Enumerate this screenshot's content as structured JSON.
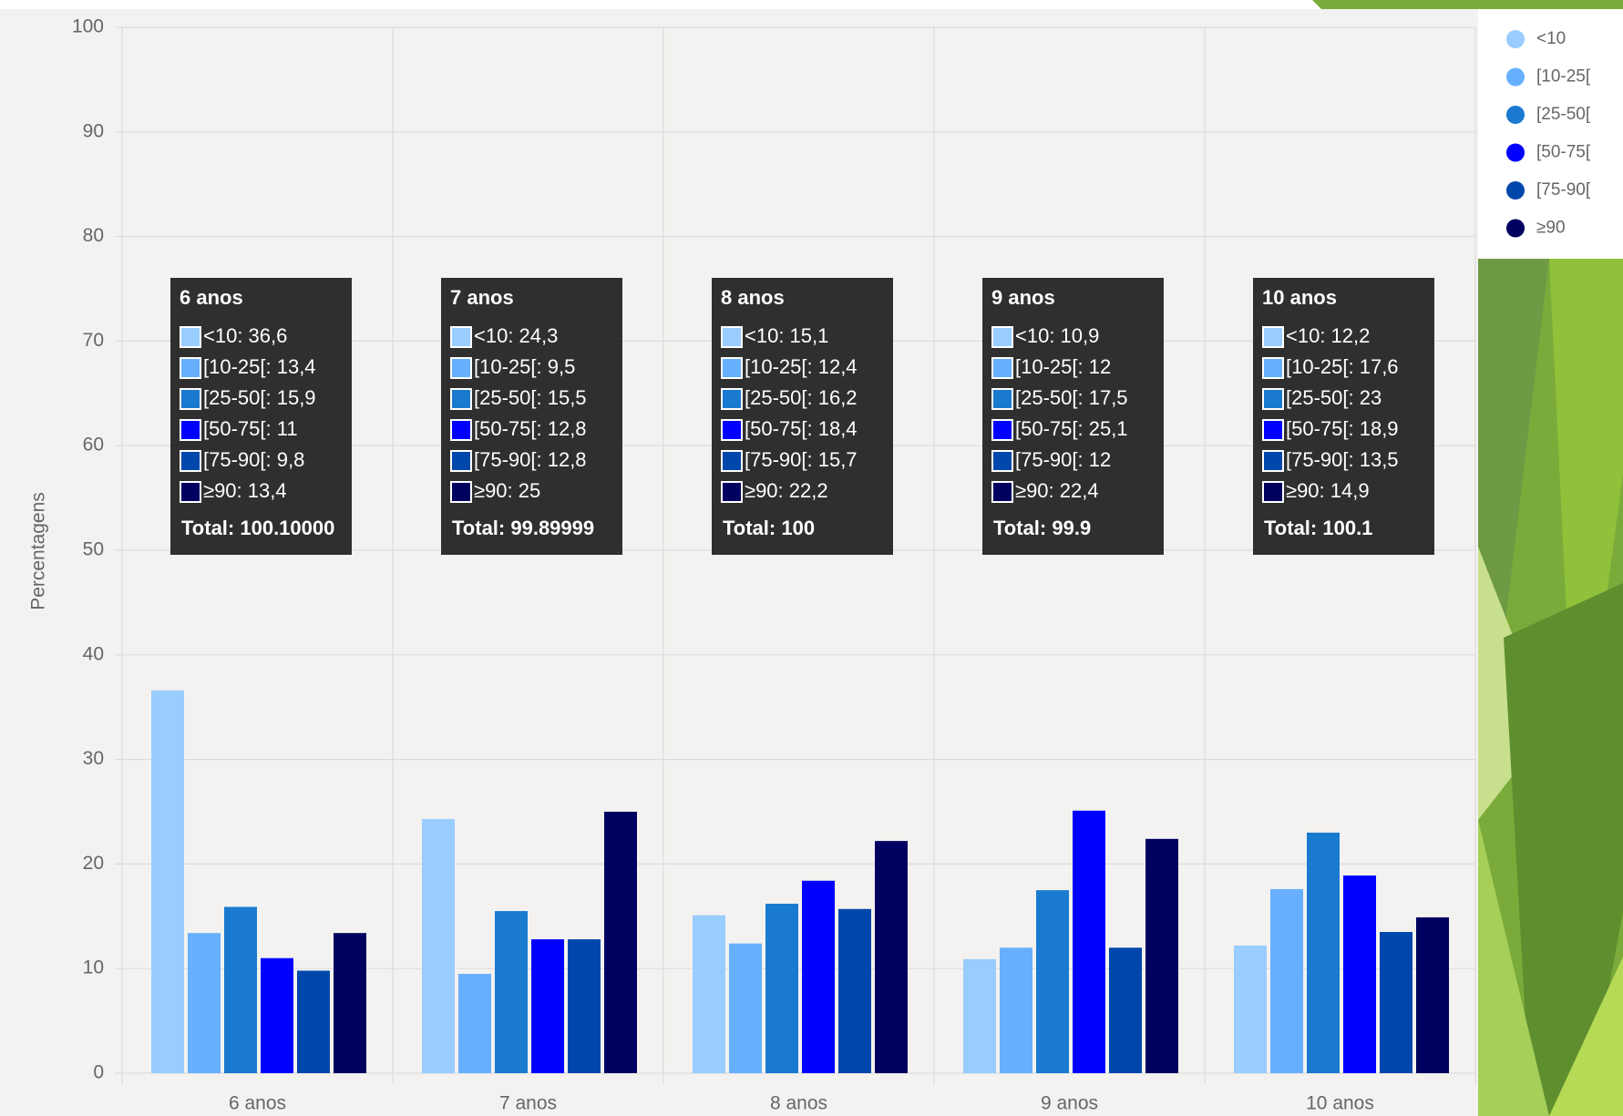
{
  "chart_data": {
    "type": "bar",
    "y_label": "Percentagens",
    "categories": [
      "6 anos",
      "7 anos",
      "8 anos",
      "9 anos",
      "10 anos"
    ],
    "series": [
      {
        "name": "<10",
        "color": "#99ccff",
        "values": [
          36.6,
          24.3,
          15.1,
          10.9,
          12.2
        ]
      },
      {
        "name": "[10-25[",
        "color": "#66b0ff",
        "values": [
          13.4,
          9.5,
          12.4,
          12,
          17.6
        ]
      },
      {
        "name": "[25-50[",
        "color": "#1a7ad0",
        "values": [
          15.9,
          15.5,
          16.2,
          17.5,
          23
        ]
      },
      {
        "name": "[50-75[",
        "color": "#0000ff",
        "values": [
          11,
          12.8,
          18.4,
          25.1,
          18.9
        ]
      },
      {
        "name": "[75-90[",
        "color": "#0047ab",
        "values": [
          9.8,
          12.8,
          15.7,
          12,
          13.5
        ]
      },
      {
        "name": "≥90",
        "color": "#000060",
        "values": [
          13.4,
          25,
          22.2,
          22.4,
          14.9
        ]
      }
    ],
    "ylim": [
      0,
      100
    ],
    "yticks": [
      0,
      10,
      20,
      30,
      40,
      50,
      60,
      70,
      80,
      90,
      100
    ],
    "grid": true,
    "legend": "right",
    "tooltips": [
      {
        "title": "6 anos",
        "lines": [
          "<10: 36,6",
          "[10-25[: 13,4",
          "[25-50[: 15,9",
          "[50-75[: 11",
          "[75-90[: 9,8",
          "≥90: 13,4"
        ],
        "total": "Total: 100.10000"
      },
      {
        "title": "7 anos",
        "lines": [
          "<10: 24,3",
          "[10-25[: 9,5",
          "[25-50[: 15,5",
          "[50-75[: 12,8",
          "[75-90[: 12,8",
          "≥90: 25"
        ],
        "total": "Total: 99.89999"
      },
      {
        "title": "8 anos",
        "lines": [
          "<10: 15,1",
          "[10-25[: 12,4",
          "[25-50[: 16,2",
          "[50-75[: 18,4",
          "[75-90[: 15,7",
          "≥90: 22,2"
        ],
        "total": "Total: 100"
      },
      {
        "title": "9 anos",
        "lines": [
          "<10: 10,9",
          "[10-25[: 12",
          "[25-50[: 17,5",
          "[50-75[: 25,1",
          "[75-90[: 12",
          "≥90: 22,4"
        ],
        "total": "Total: 99.9"
      },
      {
        "title": "10 anos",
        "lines": [
          "<10: 12,2",
          "[10-25[: 17,6",
          "[25-50[: 23",
          "[50-75[: 18,9",
          "[75-90[: 13,5",
          "≥90: 14,9"
        ],
        "total": "Total: 100.1"
      }
    ]
  }
}
